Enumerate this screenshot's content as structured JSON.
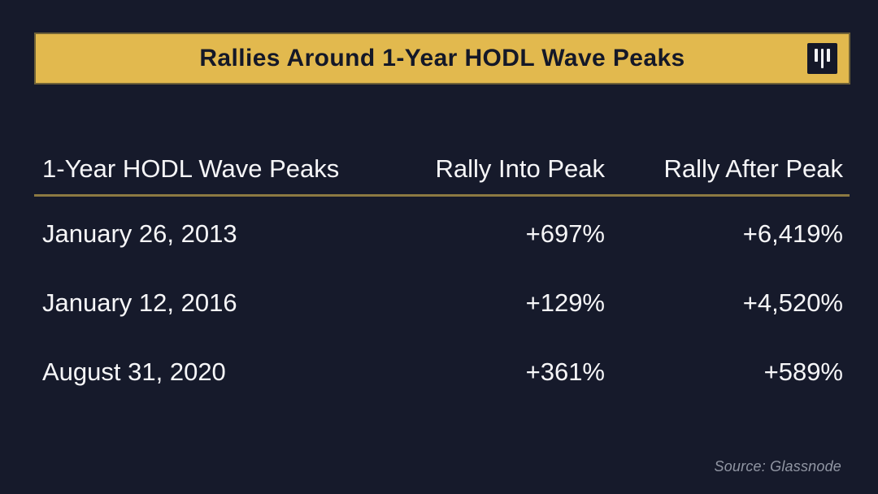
{
  "banner": {
    "title": "Rallies Around 1-Year HODL Wave Peaks",
    "logo_icon": "three-vertical-bars-logo"
  },
  "chart_data": {
    "type": "table",
    "title": "Rallies Around 1-Year HODL Wave Peaks",
    "columns": [
      "1-Year HODL Wave Peaks",
      "Rally Into Peak",
      "Rally After Peak"
    ],
    "rows": [
      [
        "January 26, 2013",
        "+697%",
        "+6,419%"
      ],
      [
        "January 12, 2016",
        "+129%",
        "+4,520%"
      ],
      [
        "August 31, 2020",
        "+361%",
        "+589%"
      ]
    ],
    "source": "Source: Glassnode"
  },
  "colors": {
    "background": "#161A2B",
    "gold": "#E2B94E",
    "gold_edge": "#6F6238",
    "dark": "#141828",
    "divider": "#8C7942",
    "text": "#F6F6F8",
    "muted": "#9196A3"
  }
}
